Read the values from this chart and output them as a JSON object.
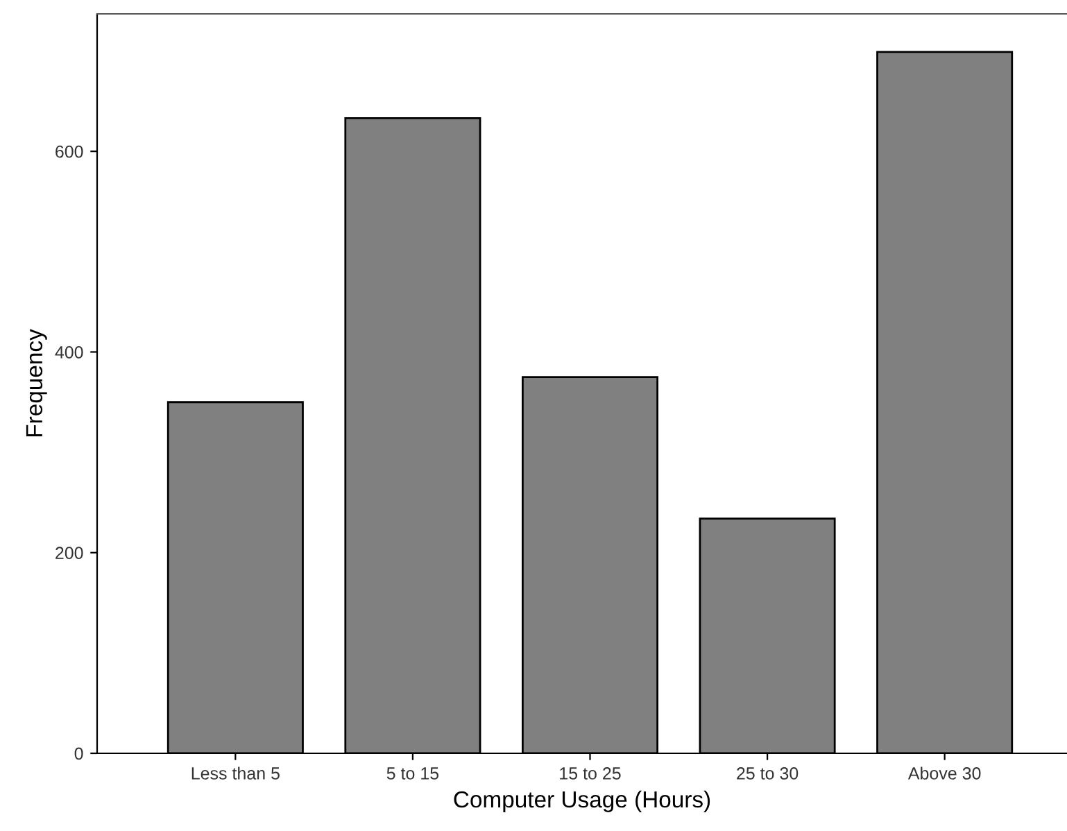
{
  "chart_data": {
    "type": "bar",
    "xlabel": "Computer Usage (Hours)",
    "ylabel": "Frequency",
    "categories": [
      "Less than 5",
      "5 to 15",
      "15 to 25",
      "25 to 30",
      "Above 30"
    ],
    "values": [
      350,
      633,
      375,
      234,
      699
    ],
    "color": "#808080",
    "ylim": [
      0,
      737
    ],
    "yticks": [
      0,
      200,
      400,
      600
    ],
    "grid": false,
    "legend": false
  }
}
